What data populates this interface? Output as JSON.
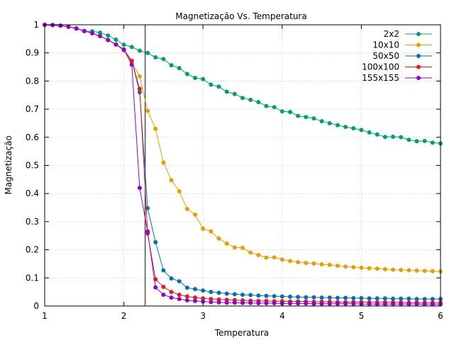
{
  "chart_data": {
    "type": "line",
    "title": "Magnetização Vs. Temperatura",
    "xlabel": "Temperatura",
    "ylabel": "Magnetização",
    "xlim": [
      1,
      6
    ],
    "ylim": [
      0,
      1
    ],
    "x_ticks": [
      "1",
      "2",
      "3",
      "4",
      "5",
      "6"
    ],
    "y_ticks": [
      "0",
      "0.1",
      "0.2",
      "0.3",
      "0.4",
      "0.5",
      "0.6",
      "0.7",
      "0.8",
      "0.9",
      "1"
    ],
    "grid": "dotted",
    "legend_position": "top-right",
    "vertical_line_x": 2.269,
    "series": [
      {
        "name": "2x2",
        "color": "#009e73",
        "x": [
          1.0,
          1.1,
          1.2,
          1.3,
          1.4,
          1.5,
          1.6,
          1.7,
          1.8,
          1.9,
          2.0,
          2.1,
          2.2,
          2.3,
          2.4,
          2.5,
          2.6,
          2.7,
          2.8,
          2.9,
          3.0,
          3.1,
          3.2,
          3.3,
          3.4,
          3.5,
          3.6,
          3.7,
          3.8,
          3.9,
          4.0,
          4.1,
          4.2,
          4.3,
          4.4,
          4.5,
          4.6,
          4.7,
          4.8,
          4.9,
          5.0,
          5.1,
          5.2,
          5.3,
          5.4,
          5.5,
          5.6,
          5.7,
          5.8,
          5.9,
          6.0
        ],
        "y": [
          1.0,
          0.999,
          0.997,
          0.993,
          0.987,
          0.977,
          0.977,
          0.972,
          0.962,
          0.947,
          0.929,
          0.921,
          0.908,
          0.9,
          0.884,
          0.878,
          0.856,
          0.846,
          0.825,
          0.811,
          0.807,
          0.787,
          0.78,
          0.762,
          0.754,
          0.74,
          0.733,
          0.725,
          0.711,
          0.707,
          0.692,
          0.69,
          0.676,
          0.672,
          0.667,
          0.657,
          0.65,
          0.643,
          0.637,
          0.632,
          0.626,
          0.617,
          0.61,
          0.601,
          0.602,
          0.6,
          0.591,
          0.586,
          0.587,
          0.581,
          0.578
        ]
      },
      {
        "name": "10x10",
        "color": "#e69f00",
        "x": [
          1.0,
          1.1,
          1.2,
          1.3,
          1.4,
          1.5,
          1.6,
          1.7,
          1.8,
          1.9,
          2.0,
          2.1,
          2.2,
          2.3,
          2.4,
          2.5,
          2.6,
          2.7,
          2.8,
          2.9,
          3.0,
          3.1,
          3.2,
          3.3,
          3.4,
          3.5,
          3.6,
          3.7,
          3.8,
          3.9,
          4.0,
          4.1,
          4.2,
          4.3,
          4.4,
          4.5,
          4.6,
          4.7,
          4.8,
          4.9,
          5.0,
          5.1,
          5.2,
          5.3,
          5.4,
          5.5,
          5.6,
          5.7,
          5.8,
          5.9,
          6.0
        ],
        "y": [
          1.0,
          0.999,
          0.997,
          0.993,
          0.986,
          0.978,
          0.97,
          0.96,
          0.946,
          0.93,
          0.913,
          0.866,
          0.817,
          0.694,
          0.63,
          0.51,
          0.447,
          0.408,
          0.345,
          0.325,
          0.275,
          0.265,
          0.24,
          0.222,
          0.208,
          0.207,
          0.19,
          0.181,
          0.172,
          0.173,
          0.165,
          0.16,
          0.156,
          0.153,
          0.151,
          0.148,
          0.146,
          0.143,
          0.14,
          0.138,
          0.136,
          0.134,
          0.133,
          0.131,
          0.129,
          0.128,
          0.127,
          0.126,
          0.125,
          0.124,
          0.123
        ]
      },
      {
        "name": "50x50",
        "color": "#0072b2",
        "x": [
          1.0,
          1.1,
          1.2,
          1.3,
          1.4,
          1.5,
          1.6,
          1.7,
          1.8,
          1.9,
          2.0,
          2.1,
          2.2,
          2.3,
          2.4,
          2.5,
          2.6,
          2.7,
          2.8,
          2.9,
          3.0,
          3.1,
          3.2,
          3.3,
          3.4,
          3.5,
          3.6,
          3.7,
          3.8,
          3.9,
          4.0,
          4.1,
          4.2,
          4.3,
          4.4,
          4.5,
          4.6,
          4.7,
          4.8,
          4.9,
          5.0,
          5.1,
          5.2,
          5.3,
          5.4,
          5.5,
          5.6,
          5.7,
          5.8,
          5.9,
          6.0
        ],
        "y": [
          1.0,
          0.999,
          0.997,
          0.993,
          0.987,
          0.978,
          0.97,
          0.96,
          0.946,
          0.93,
          0.91,
          0.872,
          0.76,
          0.348,
          0.227,
          0.127,
          0.098,
          0.088,
          0.065,
          0.06,
          0.055,
          0.05,
          0.047,
          0.044,
          0.042,
          0.04,
          0.039,
          0.037,
          0.036,
          0.035,
          0.034,
          0.033,
          0.032,
          0.031,
          0.031,
          0.03,
          0.03,
          0.029,
          0.029,
          0.028,
          0.028,
          0.027,
          0.027,
          0.027,
          0.026,
          0.026,
          0.026,
          0.025,
          0.025,
          0.025,
          0.025
        ]
      },
      {
        "name": "100x100",
        "color": "#e41a1c",
        "x": [
          1.0,
          1.1,
          1.2,
          1.3,
          1.4,
          1.5,
          1.6,
          1.7,
          1.8,
          1.9,
          2.0,
          2.1,
          2.2,
          2.3,
          2.4,
          2.5,
          2.6,
          2.7,
          2.8,
          2.9,
          3.0,
          3.1,
          3.2,
          3.3,
          3.4,
          3.5,
          3.6,
          3.7,
          3.8,
          3.9,
          4.0,
          4.1,
          4.2,
          4.3,
          4.4,
          4.5,
          4.6,
          4.7,
          4.8,
          4.9,
          5.0,
          5.1,
          5.2,
          5.3,
          5.4,
          5.5,
          5.6,
          5.7,
          5.8,
          5.9,
          6.0
        ],
        "y": [
          1.0,
          0.999,
          0.997,
          0.993,
          0.987,
          0.978,
          0.97,
          0.96,
          0.946,
          0.93,
          0.912,
          0.872,
          0.772,
          0.258,
          0.095,
          0.068,
          0.05,
          0.04,
          0.034,
          0.03,
          0.027,
          0.025,
          0.023,
          0.022,
          0.021,
          0.02,
          0.019,
          0.018,
          0.018,
          0.017,
          0.017,
          0.016,
          0.016,
          0.016,
          0.015,
          0.015,
          0.015,
          0.014,
          0.014,
          0.014,
          0.014,
          0.013,
          0.013,
          0.013,
          0.013,
          0.013,
          0.012,
          0.012,
          0.012,
          0.012,
          0.012
        ]
      },
      {
        "name": "155x155",
        "color": "#9400d3",
        "x": [
          1.0,
          1.1,
          1.2,
          1.3,
          1.4,
          1.5,
          1.6,
          1.7,
          1.8,
          1.9,
          2.0,
          2.1,
          2.2,
          2.3,
          2.4,
          2.5,
          2.6,
          2.7,
          2.8,
          2.9,
          3.0,
          3.1,
          3.2,
          3.3,
          3.4,
          3.5,
          3.6,
          3.7,
          3.8,
          3.9,
          4.0,
          4.1,
          4.2,
          4.3,
          4.4,
          4.5,
          4.6,
          4.7,
          4.8,
          4.9,
          5.0,
          5.1,
          5.2,
          5.3,
          5.4,
          5.5,
          5.6,
          5.7,
          5.8,
          5.9,
          6.0
        ],
        "y": [
          1.0,
          0.999,
          0.997,
          0.993,
          0.987,
          0.978,
          0.97,
          0.96,
          0.946,
          0.93,
          0.912,
          0.858,
          0.42,
          0.265,
          0.066,
          0.04,
          0.03,
          0.025,
          0.02,
          0.018,
          0.016,
          0.014,
          0.013,
          0.012,
          0.012,
          0.011,
          0.011,
          0.01,
          0.01,
          0.01,
          0.009,
          0.009,
          0.009,
          0.009,
          0.008,
          0.008,
          0.008,
          0.008,
          0.008,
          0.008,
          0.007,
          0.007,
          0.007,
          0.007,
          0.007,
          0.007,
          0.007,
          0.007,
          0.006,
          0.006,
          0.006
        ]
      }
    ]
  }
}
